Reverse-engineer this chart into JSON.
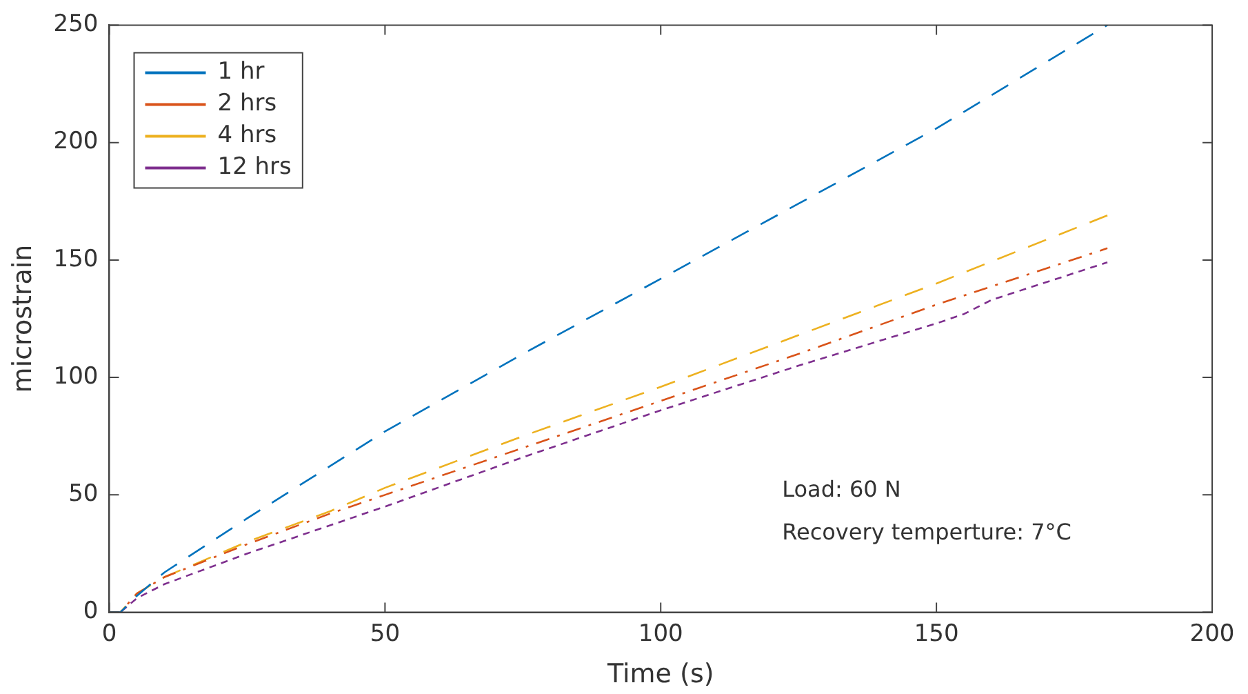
{
  "chart_data": {
    "type": "line",
    "xlabel": "Time (s)",
    "ylabel": "microstrain",
    "xlim": [
      0,
      200
    ],
    "xticks": [
      0,
      50,
      100,
      150,
      200
    ],
    "ylim": [
      0,
      250
    ],
    "yticks": [
      0,
      50,
      100,
      150,
      200,
      250
    ],
    "grid": false,
    "legend": "top left",
    "marker": "none",
    "annotations": [
      "Load: 60 N",
      "Recovery temperture: 7°C"
    ],
    "series": [
      {
        "name": "1 hr",
        "color": "#0072bd",
        "line_style": "dashed",
        "x": [
          0,
          2,
          5,
          10,
          25,
          50,
          75,
          100,
          125,
          150,
          181
        ],
        "values": [
          0,
          0,
          7,
          17,
          40,
          77,
          110,
          142,
          174,
          206,
          250
        ]
      },
      {
        "name": "2 hrs",
        "color": "#d95319",
        "line_style": "dashdot",
        "x": [
          0,
          2,
          5,
          10,
          25,
          40,
          50,
          75,
          100,
          125,
          150,
          181
        ],
        "values": [
          0,
          0,
          8,
          15,
          29,
          42,
          50,
          70,
          90,
          110,
          131,
          155
        ]
      },
      {
        "name": "4 hrs",
        "color": "#edb120",
        "line_style": "dashed",
        "x": [
          0,
          2,
          5,
          10,
          25,
          40,
          50,
          75,
          100,
          125,
          150,
          181
        ],
        "values": [
          0,
          0,
          8,
          15,
          30,
          43,
          53,
          75,
          96,
          118,
          140,
          169
        ]
      },
      {
        "name": "12 hrs",
        "color": "#7e2f8e",
        "line_style": "dotted",
        "x": [
          0,
          2,
          5,
          10,
          25,
          50,
          75,
          100,
          125,
          150,
          155,
          160,
          181
        ],
        "values": [
          0,
          0,
          6,
          12,
          25,
          45,
          66,
          86,
          105,
          123,
          127,
          133,
          149
        ]
      }
    ]
  }
}
